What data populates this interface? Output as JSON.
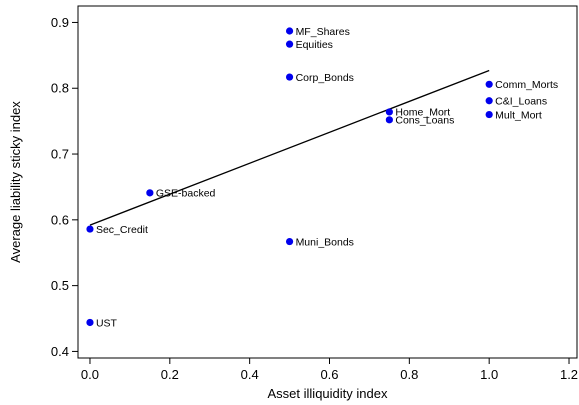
{
  "chart_data": {
    "type": "scatter",
    "xlabel": "Asset illiquidity index",
    "ylabel": "Average liability sticky index",
    "xlim": [
      -0.03,
      1.22
    ],
    "ylim": [
      0.39,
      0.925
    ],
    "xticks": [
      0.0,
      0.2,
      0.4,
      0.6,
      0.8,
      1.0,
      1.2
    ],
    "xtick_labels": [
      "0.0",
      "0.2",
      "0.4",
      "0.6",
      "0.8",
      "1.0",
      "1.2"
    ],
    "yticks": [
      0.4,
      0.5,
      0.6,
      0.7,
      0.8,
      0.9
    ],
    "ytick_labels": [
      "0.4",
      "0.5",
      "0.6",
      "0.7",
      "0.8",
      "0.9"
    ],
    "point_color": "#0000ee",
    "points": [
      {
        "label": "MF_Shares",
        "x": 0.5,
        "y": 0.887
      },
      {
        "label": "Equities",
        "x": 0.5,
        "y": 0.867
      },
      {
        "label": "Corp_Bonds",
        "x": 0.5,
        "y": 0.817
      },
      {
        "label": "Comm_Morts",
        "x": 1.0,
        "y": 0.806
      },
      {
        "label": "C&I_Loans",
        "x": 1.0,
        "y": 0.781
      },
      {
        "label": "Home_Mort",
        "x": 0.75,
        "y": 0.764
      },
      {
        "label": "Mult_Mort",
        "x": 1.0,
        "y": 0.76
      },
      {
        "label": "Cons_Loans",
        "x": 0.75,
        "y": 0.752
      },
      {
        "label": "GSE-backed",
        "x": 0.15,
        "y": 0.641
      },
      {
        "label": "Sec_Credit",
        "x": 0.0,
        "y": 0.586
      },
      {
        "label": "Muni_Bonds",
        "x": 0.5,
        "y": 0.567
      },
      {
        "label": "UST",
        "x": 0.0,
        "y": 0.444
      }
    ],
    "fit_line": {
      "x": [
        0.0,
        1.0
      ],
      "y": [
        0.592,
        0.827
      ]
    },
    "grid": false,
    "legend": false
  }
}
